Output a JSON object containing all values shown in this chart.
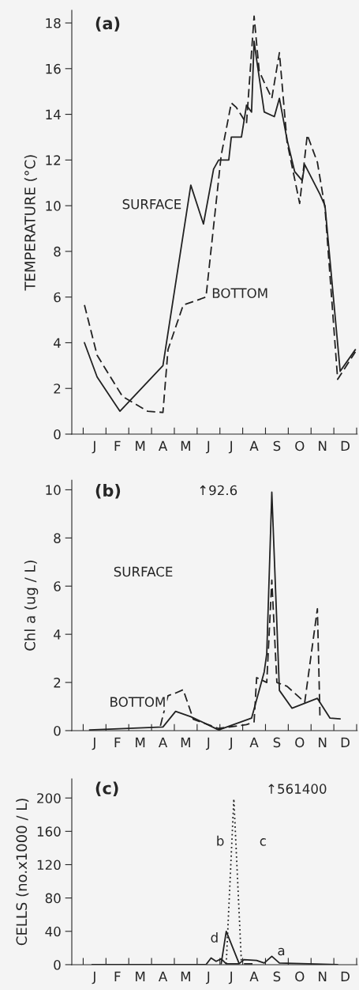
{
  "chart_data": [
    {
      "type": "line",
      "title": "(a)",
      "ylabel": "TEMPERATURE (°C)",
      "ylim": [
        0,
        18.55
      ],
      "yticks": [
        0,
        2,
        4,
        6,
        8,
        10,
        12,
        14,
        16,
        18
      ],
      "categories": [
        null,
        null,
        null,
        null,
        "J",
        null,
        null,
        null,
        null,
        null,
        null,
        null,
        null,
        "F",
        null,
        null,
        null,
        null,
        null,
        null,
        null,
        null,
        "M",
        null,
        null,
        null,
        null,
        null,
        null,
        null,
        null,
        "A",
        null,
        null,
        null,
        null,
        null,
        null,
        null,
        null,
        "M",
        null,
        null,
        null,
        null,
        null,
        null,
        null,
        null,
        "J",
        null,
        null,
        null,
        null,
        null,
        null,
        null,
        null,
        "J",
        null,
        null,
        null,
        null,
        null,
        null,
        null,
        null,
        "A",
        null,
        null,
        null,
        null,
        null,
        null,
        null,
        null,
        "S",
        null,
        null,
        null,
        null,
        null,
        null,
        null,
        null,
        "O",
        null,
        null,
        null,
        null,
        null,
        null,
        null,
        null,
        "N",
        null,
        null,
        null,
        null,
        null,
        null,
        null,
        null,
        "D",
        null,
        null,
        null,
        null
      ],
      "series": [
        {
          "color": "#222222",
          "line_style": "solid",
          "values": [
            4.0,
            null,
            null,
            null,
            null,
            2.5,
            null,
            null,
            null,
            null,
            null,
            null,
            null,
            null,
            1.0,
            null,
            null,
            null,
            null,
            null,
            null,
            null,
            null,
            null,
            null,
            null,
            null,
            null,
            null,
            null,
            null,
            3.0,
            null,
            null,
            null,
            null,
            null,
            null,
            null,
            null,
            null,
            null,
            10.9,
            null,
            null,
            null,
            null,
            9.2,
            null,
            null,
            null,
            11.6,
            null,
            12.0,
            null,
            null,
            null,
            12.0,
            13.0,
            null,
            null,
            null,
            13.0,
            null,
            14.4,
            null,
            14.1,
            17.2,
            16.4,
            null,
            null,
            14.1,
            null,
            null,
            null,
            13.9,
            null,
            14.7,
            null,
            null,
            12.9,
            null,
            null,
            11.5,
            null,
            null,
            11.1,
            11.8,
            null,
            null,
            null,
            null,
            null,
            10.5,
            null,
            10.0,
            null,
            null,
            null,
            null,
            null,
            2.75,
            null,
            null,
            null,
            null,
            null,
            3.7
          ]
        },
        {
          "color": "#222222",
          "line_style": "dashed",
          "values": [
            5.65,
            null,
            null,
            null,
            null,
            3.45,
            null,
            null,
            null,
            null,
            null,
            null,
            null,
            null,
            null,
            1.65,
            null,
            null,
            null,
            null,
            null,
            null,
            null,
            null,
            null,
            1.0,
            null,
            null,
            null,
            null,
            null,
            0.95,
            null,
            3.7,
            null,
            null,
            null,
            null,
            null,
            5.65,
            null,
            null,
            null,
            null,
            null,
            null,
            null,
            null,
            6.0,
            null,
            null,
            null,
            null,
            null,
            12.2,
            null,
            null,
            null,
            14.5,
            null,
            14.3,
            null,
            null,
            null,
            13.6,
            null,
            null,
            18.3,
            null,
            15.9,
            null,
            15.4,
            null,
            null,
            14.7,
            null,
            null,
            16.7,
            null,
            null,
            12.8,
            null,
            null,
            null,
            null,
            10.1,
            null,
            null,
            13.1,
            null,
            null,
            null,
            11.9,
            null,
            null,
            9.9,
            null,
            null,
            null,
            null,
            2.4,
            null,
            null,
            null,
            null,
            null,
            null,
            3.6
          ]
        }
      ],
      "annotations": [
        "SURFACE",
        "BOTTOM"
      ]
    },
    {
      "type": "line",
      "title": "(b)",
      "ylabel": "Chl a (ug / L)",
      "ylim": [
        0,
        10.4
      ],
      "yticks": [
        0,
        2,
        4,
        6,
        8,
        10
      ],
      "categories": [
        null,
        null,
        null,
        null,
        "J",
        null,
        null,
        null,
        null,
        null,
        null,
        null,
        null,
        "F",
        null,
        null,
        null,
        null,
        null,
        null,
        null,
        null,
        "M",
        null,
        null,
        null,
        null,
        null,
        null,
        null,
        null,
        "A",
        null,
        null,
        null,
        null,
        null,
        null,
        null,
        null,
        "M",
        null,
        null,
        null,
        null,
        null,
        null,
        null,
        null,
        "J",
        null,
        null,
        null,
        null,
        null,
        null,
        null,
        null,
        "J",
        null,
        null,
        null,
        null,
        null,
        null,
        null,
        null,
        "A",
        null,
        null,
        null,
        null,
        null,
        null,
        null,
        null,
        "S",
        null,
        null,
        null,
        null,
        null,
        null,
        null,
        null,
        "O",
        null,
        null,
        null,
        null,
        null,
        null,
        null,
        null,
        "N",
        null,
        null,
        null,
        null,
        null,
        null,
        null,
        null,
        "D",
        null,
        null,
        null,
        null
      ],
      "series": [
        {
          "color": "#222222",
          "line_style": "solid",
          "values": [
            null,
            null,
            0.03,
            null,
            null,
            null,
            null,
            null,
            null,
            null,
            null,
            null,
            null,
            null,
            null,
            null,
            null,
            null,
            null,
            null,
            null,
            null,
            null,
            null,
            null,
            null,
            null,
            null,
            null,
            null,
            null,
            0.15,
            null,
            null,
            null,
            null,
            0.8,
            null,
            null,
            null,
            null,
            null,
            0.58,
            null,
            null,
            null,
            null,
            null,
            null,
            null,
            null,
            null,
            null,
            0.03,
            null,
            null,
            null,
            null,
            null,
            null,
            null,
            null,
            null,
            null,
            null,
            null,
            0.52,
            null,
            null,
            null,
            null,
            2.44,
            3.2,
            null,
            9.9,
            null,
            null,
            1.67,
            null,
            null,
            null,
            null,
            0.93,
            null,
            null,
            null,
            null,
            null,
            null,
            null,
            null,
            null,
            1.34,
            null,
            null,
            null,
            null,
            0.52,
            null,
            null,
            null,
            0.49,
            null,
            null,
            null,
            null,
            null,
            null
          ]
        },
        {
          "color": "#222222",
          "line_style": "dashed",
          "values": [
            null,
            null,
            null,
            null,
            null,
            null,
            null,
            null,
            null,
            null,
            null,
            null,
            null,
            null,
            null,
            null,
            null,
            null,
            null,
            null,
            null,
            null,
            null,
            null,
            null,
            null,
            null,
            null,
            null,
            null,
            0.2,
            null,
            null,
            1.45,
            null,
            null,
            1.56,
            null,
            null,
            1.7,
            null,
            null,
            null,
            0.47,
            null,
            null,
            null,
            null,
            null,
            null,
            null,
            null,
            null,
            0.09,
            null,
            null,
            null,
            null,
            null,
            null,
            null,
            null,
            null,
            null,
            0.25,
            null,
            null,
            0.36,
            2.2,
            null,
            null,
            null,
            2.0,
            null,
            6.25,
            null,
            2.0,
            null,
            null,
            null,
            1.84,
            null,
            null,
            null,
            null,
            null,
            null,
            1.18,
            null,
            null,
            null,
            null,
            5.06,
            0.63,
            null,
            null,
            null,
            null,
            null,
            null,
            null,
            null,
            null,
            null,
            null,
            null,
            null,
            null
          ]
        }
      ],
      "annotations": [
        "SURFACE",
        "BOTTOM",
        "↑92.6"
      ]
    },
    {
      "type": "line",
      "title": "(c)",
      "ylabel": "CELLS (no.x1000 / L)",
      "ylim": [
        0,
        223
      ],
      "yticks": [
        0,
        40,
        80,
        120,
        160,
        200
      ],
      "categories": [
        null,
        null,
        null,
        null,
        "J",
        null,
        null,
        null,
        null,
        null,
        null,
        null,
        null,
        "F",
        null,
        null,
        null,
        null,
        null,
        null,
        null,
        null,
        "M",
        null,
        null,
        null,
        null,
        null,
        null,
        null,
        null,
        "A",
        null,
        null,
        null,
        null,
        null,
        null,
        null,
        null,
        "M",
        null,
        null,
        null,
        null,
        null,
        null,
        null,
        null,
        "J",
        null,
        null,
        null,
        null,
        null,
        null,
        null,
        null,
        "J",
        null,
        null,
        null,
        null,
        null,
        null,
        null,
        null,
        "A",
        null,
        null,
        null,
        null,
        null,
        null,
        null,
        null,
        "S",
        null,
        null,
        null,
        null,
        null,
        null,
        null,
        null,
        "O",
        null,
        null,
        null,
        null,
        null,
        null,
        null,
        null,
        "N",
        null,
        null,
        null,
        null,
        null,
        null,
        null,
        null,
        "D",
        null,
        null,
        null,
        null
      ],
      "series": [
        {
          "color": "#222222",
          "line_style": "solid",
          "values": [
            null,
            null,
            null,
            0,
            null,
            null,
            null,
            null,
            null,
            null,
            null,
            null,
            null,
            null,
            null,
            null,
            null,
            null,
            null,
            null,
            null,
            null,
            null,
            null,
            null,
            null,
            null,
            null,
            null,
            null,
            null,
            null,
            null,
            null,
            null,
            null,
            null,
            null,
            null,
            null,
            null,
            null,
            null,
            null,
            null,
            null,
            null,
            null,
            0,
            null,
            8,
            null,
            4,
            null,
            7,
            null,
            1,
            null,
            null,
            null,
            null,
            1,
            null,
            6,
            null,
            null,
            null,
            null,
            5,
            null,
            null,
            2,
            null,
            null,
            10,
            null,
            null,
            2,
            null,
            null,
            null,
            null,
            null,
            null,
            null,
            null,
            null,
            null,
            null,
            null,
            null,
            null,
            null,
            null,
            null,
            null,
            null,
            null,
            null,
            null,
            0,
            null,
            null,
            null,
            null,
            null,
            null,
            null
          ]
        },
        {
          "color": "#222222",
          "line_style": "solid",
          "values": [
            null,
            null,
            null,
            null,
            null,
            null,
            null,
            null,
            null,
            null,
            null,
            null,
            null,
            null,
            null,
            null,
            null,
            null,
            null,
            null,
            null,
            null,
            null,
            null,
            null,
            null,
            null,
            null,
            null,
            null,
            null,
            null,
            null,
            null,
            null,
            null,
            null,
            null,
            null,
            null,
            null,
            null,
            null,
            null,
            null,
            null,
            null,
            null,
            null,
            null,
            null,
            null,
            null,
            null,
            1,
            null,
            40,
            null,
            null,
            null,
            null,
            2,
            null,
            null,
            null,
            null,
            null,
            null,
            null,
            null,
            null,
            null,
            null,
            null,
            null,
            null,
            null,
            null,
            null,
            null,
            null,
            null,
            null,
            null,
            null,
            null,
            null,
            null,
            null,
            null,
            null,
            null,
            null,
            null,
            null,
            null,
            null,
            null,
            null,
            null,
            null,
            null,
            null,
            null,
            null,
            null,
            null,
            null
          ]
        },
        {
          "color": "#222222",
          "line_style": "dotted",
          "values": [
            null,
            null,
            null,
            null,
            null,
            null,
            null,
            null,
            null,
            null,
            null,
            null,
            null,
            null,
            null,
            null,
            null,
            null,
            null,
            null,
            null,
            null,
            null,
            null,
            null,
            null,
            null,
            null,
            null,
            null,
            null,
            null,
            null,
            null,
            null,
            null,
            null,
            null,
            null,
            null,
            null,
            null,
            null,
            null,
            null,
            null,
            null,
            null,
            null,
            null,
            null,
            null,
            null,
            null,
            null,
            null,
            1,
            null,
            null,
            199,
            null,
            null,
            2,
            null,
            null,
            null,
            null,
            null,
            null,
            null,
            null,
            null,
            null,
            null,
            null,
            null,
            null,
            null,
            null,
            null,
            null,
            null,
            null,
            null,
            null,
            null,
            null,
            null,
            null,
            null,
            null,
            null,
            null,
            null,
            null,
            null,
            null,
            null,
            null,
            null,
            null,
            null,
            null,
            null,
            null,
            null,
            null,
            null
          ]
        },
        {
          "color": "#222222",
          "line_style": "dashed",
          "values": [
            null,
            null,
            null,
            null,
            null,
            null,
            null,
            null,
            null,
            null,
            null,
            null,
            null,
            null,
            null,
            null,
            null,
            null,
            null,
            null,
            null,
            null,
            null,
            null,
            null,
            null,
            null,
            null,
            null,
            null,
            null,
            null,
            null,
            null,
            null,
            null,
            null,
            null,
            null,
            null,
            null,
            null,
            null,
            null,
            null,
            null,
            null,
            null,
            null,
            null,
            null,
            null,
            null,
            null,
            null,
            null,
            null,
            null,
            null,
            null,
            null,
            null,
            null,
            1,
            null,
            null,
            null,
            1,
            null,
            null,
            null,
            null,
            null,
            null,
            null,
            null,
            null,
            null,
            null,
            null,
            null,
            null,
            null,
            null,
            null,
            null,
            null,
            null,
            null,
            null,
            null,
            null,
            null,
            null,
            null,
            null,
            null,
            null,
            null,
            null,
            null,
            null,
            null,
            null,
            null,
            null,
            null,
            null
          ]
        }
      ],
      "annotations": [
        "a",
        "b",
        "c",
        "d",
        "↑561400"
      ]
    }
  ]
}
